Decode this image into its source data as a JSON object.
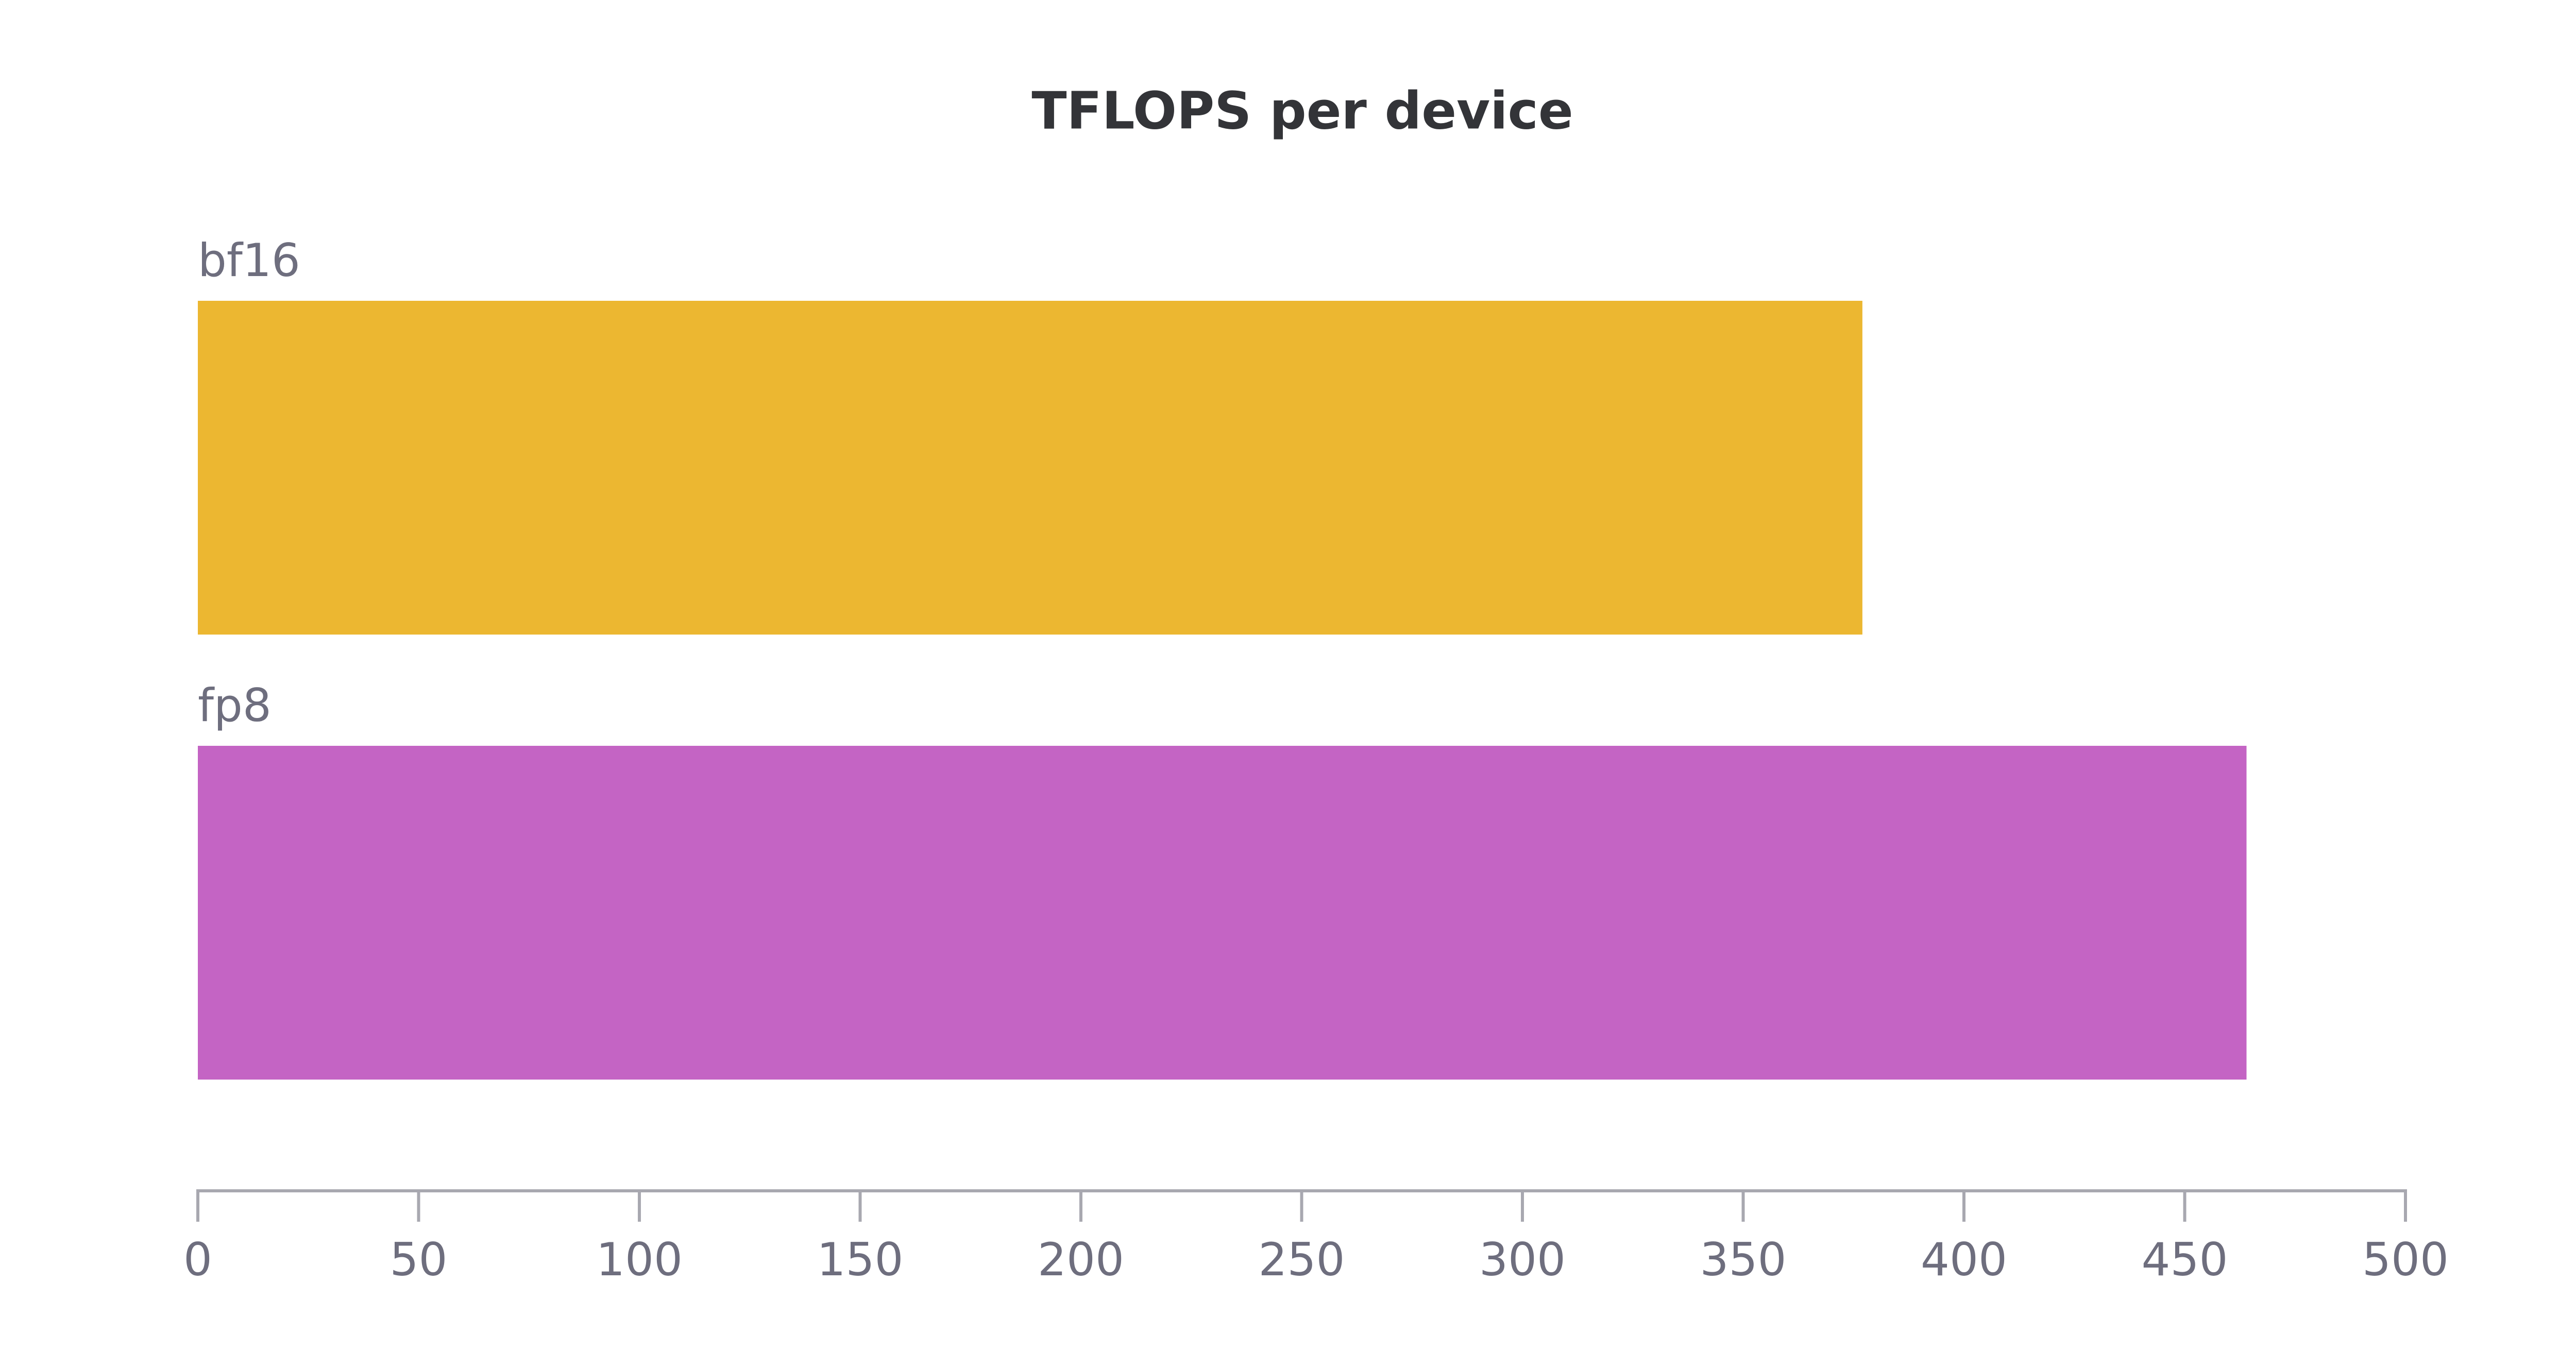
{
  "chart_data": {
    "type": "hbar",
    "title": "TFLOPS per device",
    "categories": [
      "bf16",
      "fp8"
    ],
    "values": [
      377,
      464
    ],
    "colors": [
      "#ecb731",
      "#c464c4"
    ],
    "xlim": [
      0,
      500
    ],
    "xticks": [
      0,
      50,
      100,
      150,
      200,
      250,
      300,
      350,
      400,
      450,
      500
    ]
  }
}
